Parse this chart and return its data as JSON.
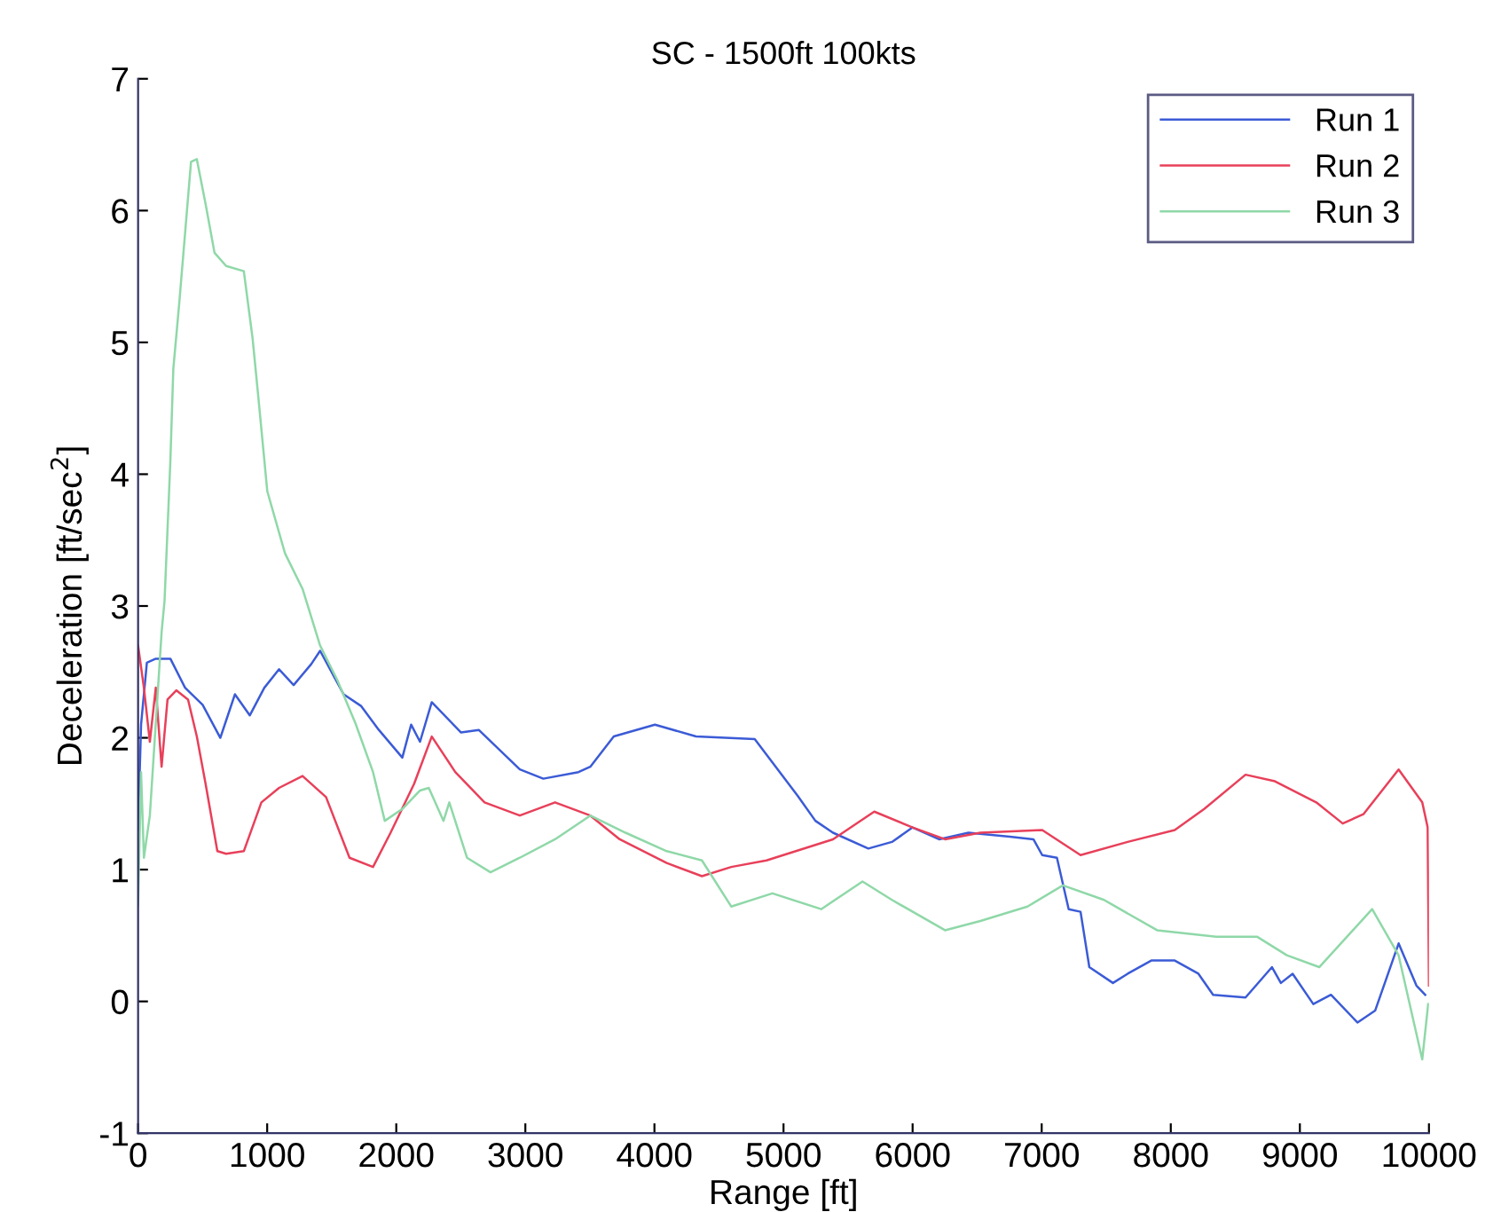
{
  "chart_data": {
    "type": "line",
    "title": "SC - 1500ft 100kts",
    "xlabel": "Range [ft]",
    "ylabel": "Deceleration [ft/sec$^{2}$]",
    "xlim": [
      0,
      10000
    ],
    "ylim": [
      -1,
      7
    ],
    "xticks": [
      0,
      1000,
      2000,
      3000,
      4000,
      5000,
      6000,
      7000,
      8000,
      9000,
      10000
    ],
    "yticks": [
      -1,
      0,
      1,
      2,
      3,
      4,
      5,
      6,
      7
    ],
    "grid": false,
    "legend": "top right",
    "marker": "none",
    "line_style": "solid",
    "series": [
      {
        "name": "Run 1",
        "color": "#3b5bd6",
        "x": [
          0,
          23,
          68,
          137,
          250,
          364,
          500,
          637,
          750,
          865,
          978,
          1092,
          1205,
          1342,
          1410,
          1592,
          1729,
          1865,
          2047,
          2115,
          2184,
          2275,
          2502,
          2639,
          2957,
          3139,
          3412,
          3503,
          3685,
          4004,
          4322,
          4777,
          5110,
          5247,
          5383,
          5657,
          5840,
          6000,
          6205,
          6433,
          6753,
          6936,
          7004,
          7118,
          7209,
          7301,
          7369,
          7552,
          7666,
          7849,
          8031,
          8214,
          8328,
          8579,
          8784,
          8853,
          8944,
          9104,
          9241,
          9446,
          9583,
          9765,
          9903,
          9971
        ],
        "values": [
          1.3,
          2.1,
          2.57,
          2.6,
          2.6,
          2.38,
          2.25,
          2.0,
          2.33,
          2.17,
          2.38,
          2.52,
          2.4,
          2.56,
          2.66,
          2.33,
          2.24,
          2.06,
          1.85,
          2.1,
          1.97,
          2.27,
          2.04,
          2.06,
          1.76,
          1.69,
          1.74,
          1.78,
          2.01,
          2.1,
          2.01,
          1.99,
          1.56,
          1.37,
          1.28,
          1.16,
          1.21,
          1.32,
          1.23,
          1.28,
          1.25,
          1.23,
          1.11,
          1.09,
          0.7,
          0.68,
          0.26,
          0.14,
          0.21,
          0.31,
          0.31,
          0.21,
          0.05,
          0.03,
          0.26,
          0.14,
          0.21,
          -0.02,
          0.05,
          -0.16,
          -0.07,
          0.44,
          0.12,
          0.05
        ]
      },
      {
        "name": "Run 2",
        "color": "#e8405a",
        "x": [
          0,
          45,
          91,
          137,
          182,
          228,
          296,
          387,
          455,
          523,
          614,
          682,
          819,
          955,
          1092,
          1274,
          1456,
          1638,
          1820,
          1956,
          2138,
          2275,
          2457,
          2684,
          2957,
          3230,
          3503,
          3731,
          4095,
          4368,
          4595,
          4868,
          5383,
          5703,
          6000,
          6251,
          6525,
          7004,
          7301,
          7666,
          8031,
          8259,
          8579,
          8807,
          9127,
          9332,
          9492,
          9765,
          9948,
          9990,
          10000
        ],
        "values": [
          2.7,
          2.38,
          1.97,
          2.38,
          1.78,
          2.29,
          2.36,
          2.29,
          2.01,
          1.65,
          1.14,
          1.12,
          1.14,
          1.51,
          1.62,
          1.71,
          1.55,
          1.09,
          1.02,
          1.28,
          1.65,
          2.01,
          1.74,
          1.51,
          1.41,
          1.51,
          1.41,
          1.23,
          1.05,
          0.95,
          1.02,
          1.07,
          1.23,
          1.44,
          1.32,
          1.23,
          1.28,
          1.3,
          1.11,
          1.21,
          1.3,
          1.46,
          1.72,
          1.67,
          1.51,
          1.35,
          1.42,
          1.76,
          1.51,
          1.32,
          0.12
        ]
      },
      {
        "name": "Run 3",
        "color": "#8fd8a8",
        "x": [
          0,
          23,
          45,
          91,
          137,
          182,
          205,
          250,
          273,
          319,
          410,
          455,
          523,
          592,
          682,
          819,
          887,
          933,
          1001,
          1138,
          1274,
          1410,
          1547,
          1684,
          1820,
          1911,
          2047,
          2184,
          2252,
          2366,
          2411,
          2548,
          2730,
          2957,
          3230,
          3503,
          3776,
          4095,
          4368,
          4595,
          4914,
          5292,
          5612,
          5840,
          6251,
          6525,
          6890,
          7164,
          7483,
          7894,
          8351,
          8670,
          8899,
          9150,
          9560,
          9765,
          9948,
          9994
        ],
        "values": [
          0.73,
          1.74,
          1.09,
          1.41,
          2.11,
          2.8,
          3.04,
          4.1,
          4.8,
          5.3,
          6.37,
          6.39,
          6.05,
          5.68,
          5.58,
          5.54,
          5.03,
          4.57,
          3.87,
          3.4,
          3.13,
          2.7,
          2.43,
          2.11,
          1.74,
          1.37,
          1.46,
          1.6,
          1.62,
          1.37,
          1.51,
          1.09,
          0.98,
          1.09,
          1.23,
          1.41,
          1.28,
          1.14,
          1.07,
          0.72,
          0.82,
          0.7,
          0.91,
          0.77,
          0.54,
          0.61,
          0.72,
          0.88,
          0.77,
          0.54,
          0.49,
          0.49,
          0.35,
          0.26,
          0.7,
          0.35,
          -0.44,
          -0.02
        ]
      }
    ]
  }
}
